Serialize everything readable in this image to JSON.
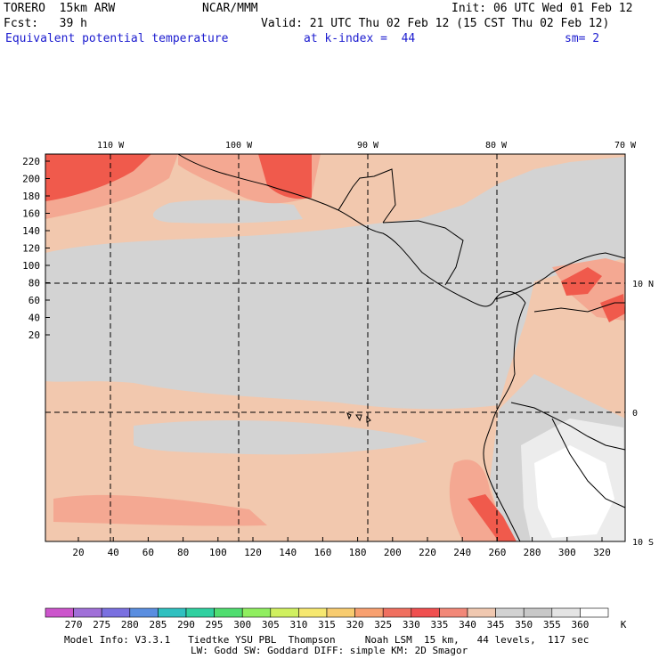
{
  "header": {
    "model": "TORERO  15km ARW",
    "org": "NCAR/MMM",
    "init": "Init: 06 UTC Wed 01 Feb 12",
    "fcst": "Fcst:   39 h",
    "valid": "Valid: 21 UTC Thu 02 Feb 12 (15 CST Thu 02 Feb 12)",
    "field": "Equivalent potential temperature",
    "level": "at k-index =  44",
    "smooth": "sm= 2"
  },
  "map": {
    "lon_labels": [
      "110 W",
      "100 W",
      "90 W",
      "80 W",
      "70 W"
    ],
    "lat_labels": [
      "10 N",
      "0",
      "10 S"
    ],
    "y_ticks": [
      "220",
      "200",
      "180",
      "160",
      "140",
      "120",
      "100",
      "80",
      "60",
      "40",
      "20"
    ],
    "x_ticks": [
      "20",
      "40",
      "60",
      "80",
      "100",
      "120",
      "140",
      "160",
      "180",
      "200",
      "220",
      "240",
      "260",
      "280",
      "300",
      "320"
    ]
  },
  "colorbar": {
    "unit": "K",
    "labels": [
      "270",
      "275",
      "280",
      "285",
      "290",
      "295",
      "300",
      "305",
      "310",
      "315",
      "320",
      "325",
      "330",
      "335",
      "340",
      "345",
      "350",
      "355",
      "360"
    ],
    "colors": [
      "#cc55cc",
      "#a070d8",
      "#7a70e0",
      "#5a8ee0",
      "#30c0c0",
      "#30d0a0",
      "#50dd70",
      "#90ee60",
      "#d0f060",
      "#f6e870",
      "#f8cc70",
      "#f8a070",
      "#f07060",
      "#f05050",
      "#f28878",
      "#f0c8b0",
      "#d2d2d2",
      "#c8c8c8",
      "#e4e4e4",
      "#ffffff"
    ]
  },
  "footer": {
    "line1": "Model Info: V3.3.1   Tiedtke YSU PBL  Thompson     Noah LSM  15 km,   44 levels,  117 sec",
    "line2": "LW: Godd SW: Goddard DIFF: simple KM: 2D Smagor"
  }
}
